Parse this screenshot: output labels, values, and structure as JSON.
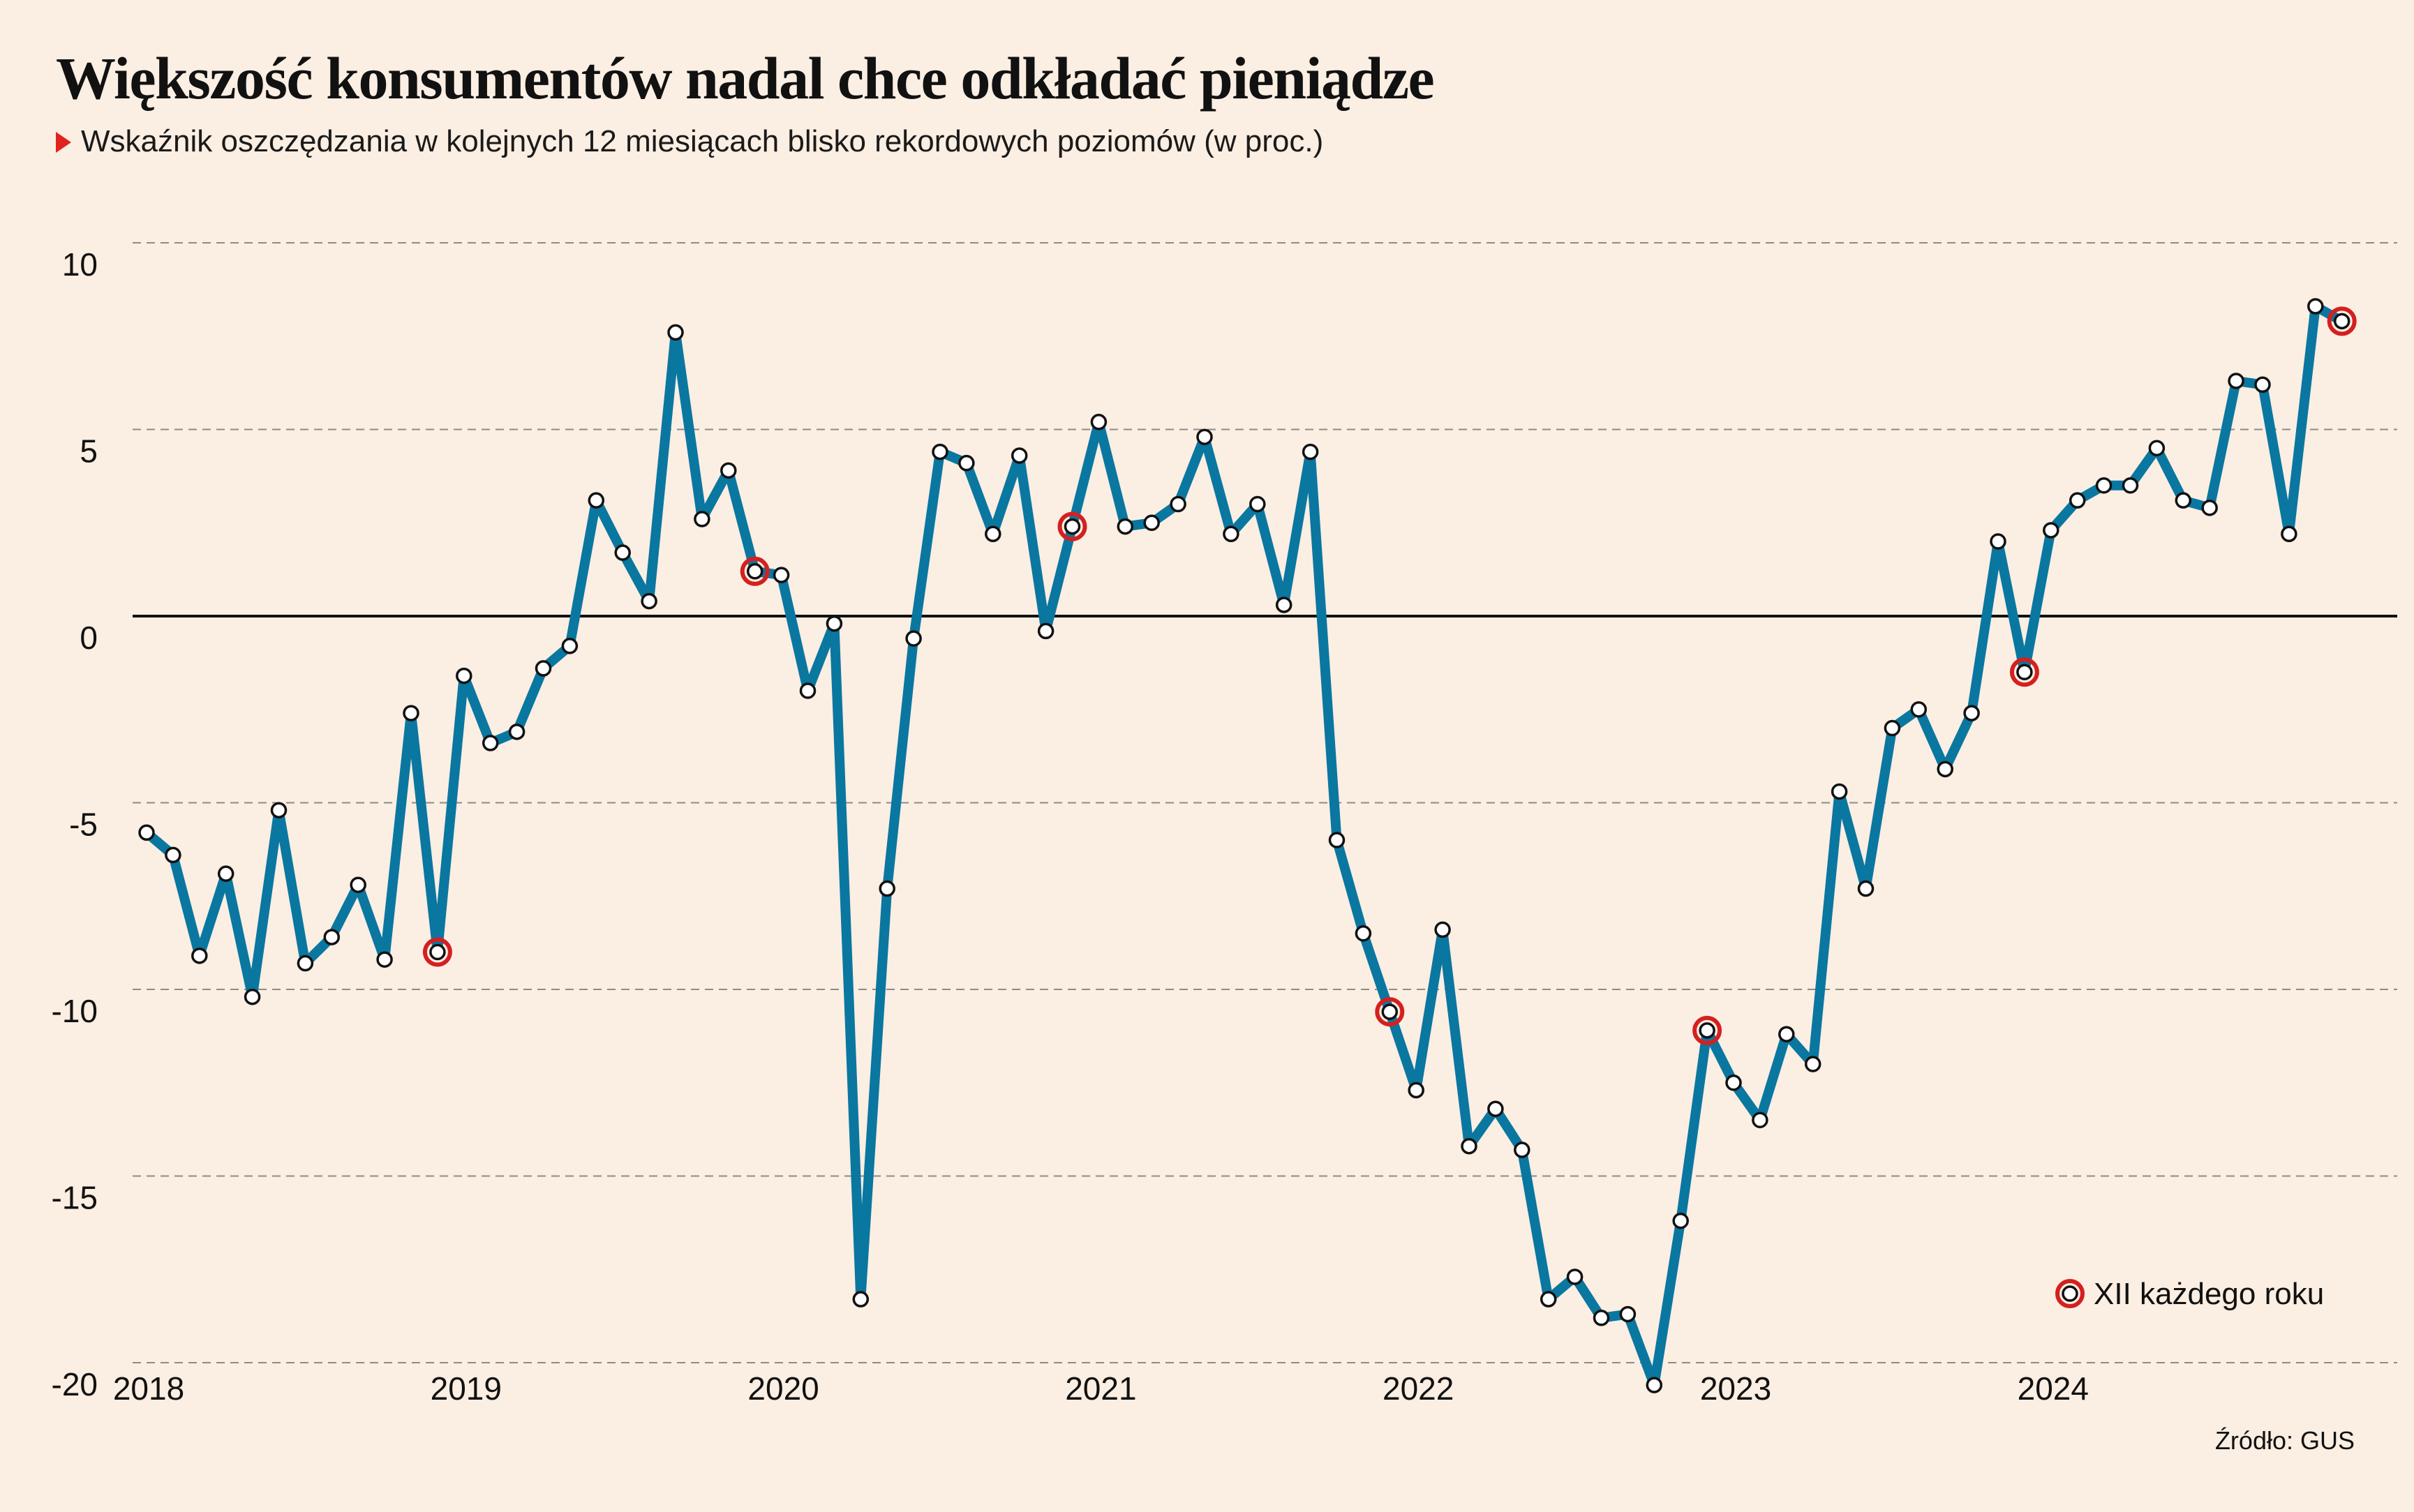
{
  "header": {
    "title": "Większość konsumentów nadal chce odkładać pieniądze",
    "subtitle": "Wskaźnik oszczędzania w kolejnych 12 miesiącach blisko rekordowych poziomów (w proc.)"
  },
  "footer": {
    "source": "Źródło: GUS"
  },
  "colors": {
    "background": "#fbeee2",
    "line": "#0a77a0",
    "marker_fill": "#ffffff",
    "highlight": "#d42020",
    "grid": "#8c8c8c",
    "zero_line": "#111111",
    "subtitle_marker": "#e0231e"
  },
  "chart_data": {
    "type": "line",
    "title": "Większość konsumentów nadal chce odkładać pieniądze",
    "subtitle": "Wskaźnik oszczędzania w kolejnych 12 miesiącach blisko rekordowych poziomów (w proc.)",
    "xlabel": "",
    "ylabel": "",
    "ylim": [
      -20,
      10
    ],
    "yticks": [
      10,
      5,
      0,
      -5,
      -10,
      -15,
      -20
    ],
    "year_labels": [
      "2018",
      "2019",
      "2020",
      "2021",
      "2022",
      "2023",
      "2024"
    ],
    "grid": "horizontal dashed",
    "legend": {
      "label": "XII każdego roku",
      "position": "bottom-right"
    },
    "x_start": "2018-01",
    "x_end": "2024-12",
    "series": [
      {
        "frequency": "monthly",
        "values": [
          -5.8,
          -6.4,
          -9.1,
          -6.9,
          -10.2,
          -5.2,
          -9.3,
          -8.6,
          -7.2,
          -9.2,
          -2.6,
          -9.0,
          -1.6,
          -3.4,
          -3.1,
          -1.4,
          -0.8,
          3.1,
          1.7,
          0.4,
          7.6,
          2.6,
          3.9,
          1.2,
          1.1,
          -2.0,
          -0.2,
          -18.3,
          -7.3,
          -0.6,
          4.4,
          4.1,
          2.2,
          4.3,
          -0.4,
          2.4,
          5.2,
          2.4,
          2.5,
          3.0,
          4.8,
          2.2,
          3.0,
          0.3,
          4.4,
          -6.0,
          -8.5,
          -10.6,
          -12.7,
          -8.4,
          -14.2,
          -13.2,
          -14.3,
          -18.3,
          -17.7,
          -18.8,
          -18.7,
          -20.6,
          -16.2,
          -11.1,
          -12.5,
          -13.5,
          -11.2,
          -12.0,
          -4.7,
          -7.3,
          -3.0,
          -2.5,
          -4.1,
          -2.6,
          2.0,
          -1.5,
          2.3,
          3.1,
          3.5,
          3.5,
          4.5,
          3.1,
          2.9,
          6.3,
          6.2,
          2.2,
          8.3,
          7.9
        ]
      }
    ],
    "highlighted_points": [
      {
        "x": "2018-12",
        "y": -9.0
      },
      {
        "x": "2019-12",
        "y": 1.2
      },
      {
        "x": "2020-12",
        "y": 2.4
      },
      {
        "x": "2021-12",
        "y": -10.6
      },
      {
        "x": "2022-12",
        "y": -11.1
      },
      {
        "x": "2023-12",
        "y": -1.5
      },
      {
        "x": "2024-12",
        "y": 7.9
      }
    ]
  }
}
